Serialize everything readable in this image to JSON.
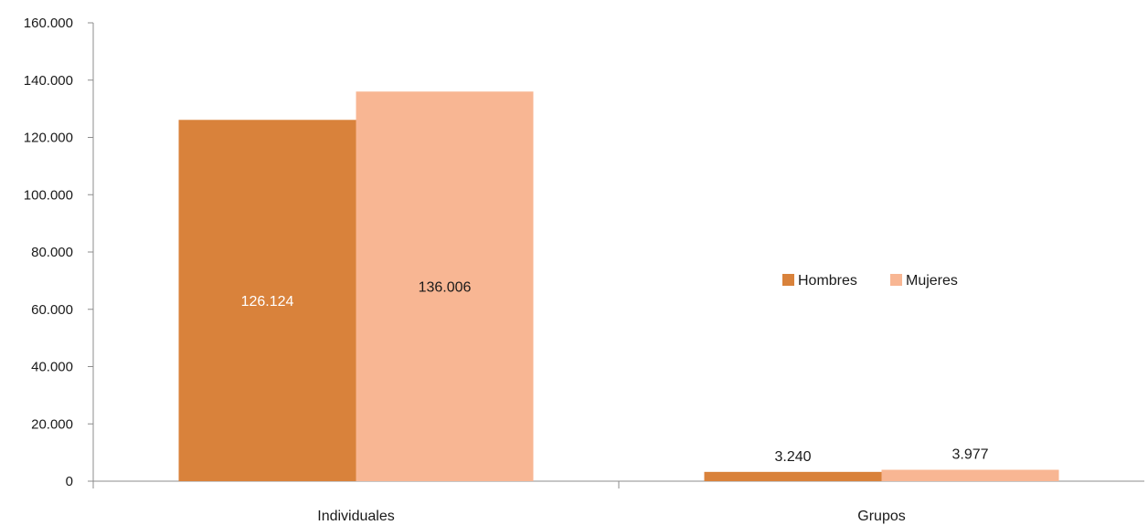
{
  "chart_data": {
    "type": "bar",
    "categories": [
      "Individuales",
      "Grupos"
    ],
    "series": [
      {
        "name": "Hombres",
        "values": [
          126124,
          3240
        ],
        "value_labels": [
          "126.124",
          "3.240"
        ],
        "color": "#D9823B",
        "label_color": "#ffffff"
      },
      {
        "name": "Mujeres",
        "values": [
          136006,
          3977
        ],
        "value_labels": [
          "136.006",
          "3.977"
        ],
        "color": "#F8B693",
        "label_color": "#1a1a1a"
      }
    ],
    "ylim": [
      0,
      160000
    ],
    "y_ticks": [
      0,
      20000,
      40000,
      60000,
      80000,
      100000,
      120000,
      140000,
      160000
    ],
    "y_tick_labels": [
      "0",
      "20.000",
      "40.000",
      "60.000",
      "80.000",
      "100.000",
      "120.000",
      "140.000",
      "160.000"
    ],
    "legend_position": "right",
    "grid": false
  }
}
